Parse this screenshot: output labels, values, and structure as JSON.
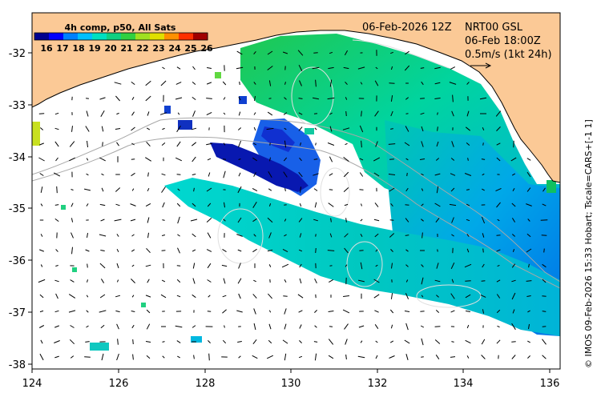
{
  "map": {
    "lon_ticks": [
      "124",
      "126",
      "128",
      "130",
      "132",
      "134",
      "136"
    ],
    "lat_ticks": [
      "-32",
      "-33",
      "-34",
      "-35",
      "-36",
      "-37",
      "-38"
    ],
    "lon_range": [
      124,
      136.7
    ],
    "lat_range": [
      -38.05,
      -31.35
    ],
    "colors": {
      "land": "#fbc996",
      "ocean": "#ffffff",
      "frame": "#000000"
    }
  },
  "colorbar": {
    "title": "4h comp, p50, All Sats",
    "labels": [
      "16",
      "17",
      "18",
      "19",
      "20",
      "21",
      "22",
      "23",
      "24",
      "25",
      "26"
    ],
    "colors": [
      "#00008f",
      "#0000ff",
      "#0080ff",
      "#00c0ff",
      "#00e0c0",
      "#10d080",
      "#30d040",
      "#a0e020",
      "#e0e000",
      "#ff9000",
      "#ff3000",
      "#a00000"
    ]
  },
  "header": {
    "date": "06-Feb-2026 12Z",
    "product": "NRT00 GSL",
    "current_time": "06-Feb 18:00Z",
    "scale": "0.5m/s (1kt 24h)"
  },
  "credit": "© IMOS 09-Feb-2026 15:33 Hobart; Tscale=CARS+[-1 1]"
}
